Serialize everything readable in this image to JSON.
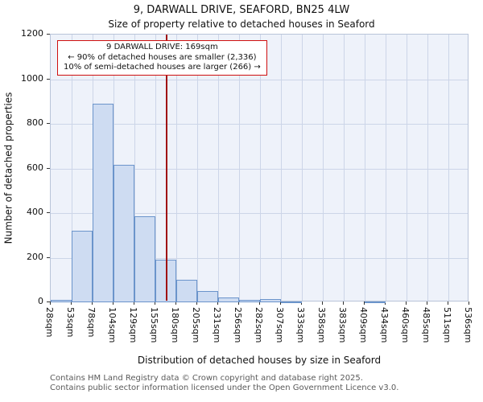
{
  "chart_data": {
    "type": "bar",
    "title": "9, DARWALL DRIVE, SEAFORD, BN25 4LW",
    "subtitle": "Size of property relative to detached houses in Seaford",
    "xlabel": "Distribution of detached houses by size in Seaford",
    "ylabel": "Number of detached properties",
    "x_tick_labels": [
      "28sqm",
      "53sqm",
      "78sqm",
      "104sqm",
      "129sqm",
      "155sqm",
      "180sqm",
      "205sqm",
      "231sqm",
      "256sqm",
      "282sqm",
      "307sqm",
      "333sqm",
      "358sqm",
      "383sqm",
      "409sqm",
      "434sqm",
      "460sqm",
      "485sqm",
      "511sqm",
      "536sqm"
    ],
    "bin_edges_sqm": [
      28,
      53,
      78,
      104,
      129,
      155,
      180,
      205,
      231,
      256,
      282,
      307,
      333,
      358,
      383,
      409,
      434,
      460,
      485,
      511,
      536
    ],
    "values": [
      10,
      320,
      890,
      615,
      385,
      190,
      100,
      50,
      20,
      10,
      15,
      5,
      0,
      0,
      0,
      5,
      0,
      0,
      0,
      0
    ],
    "ylim": [
      0,
      1200
    ],
    "yticks": [
      0,
      200,
      400,
      600,
      800,
      1000,
      1200
    ],
    "grid": true,
    "legend": "none",
    "marker_line": {
      "value_sqm": 169,
      "color": "#a01212"
    },
    "annotation": {
      "line1": "9 DARWALL DRIVE: 169sqm",
      "line2": "← 90% of detached houses are smaller (2,336)",
      "line3": "10% of semi-detached houses are larger (266) →",
      "border_color": "#cf0f0f"
    },
    "colors": {
      "bar_fill": "#cedcf2",
      "bar_border": "#6b94cb",
      "plot_background": "#eef2fa",
      "gridline": "#ccd5e8",
      "marker_red": "#a01212"
    }
  },
  "footer": {
    "line1": "Contains HM Land Registry data © Crown copyright and database right 2025.",
    "line2": "Contains public sector information licensed under the Open Government Licence v3.0."
  }
}
